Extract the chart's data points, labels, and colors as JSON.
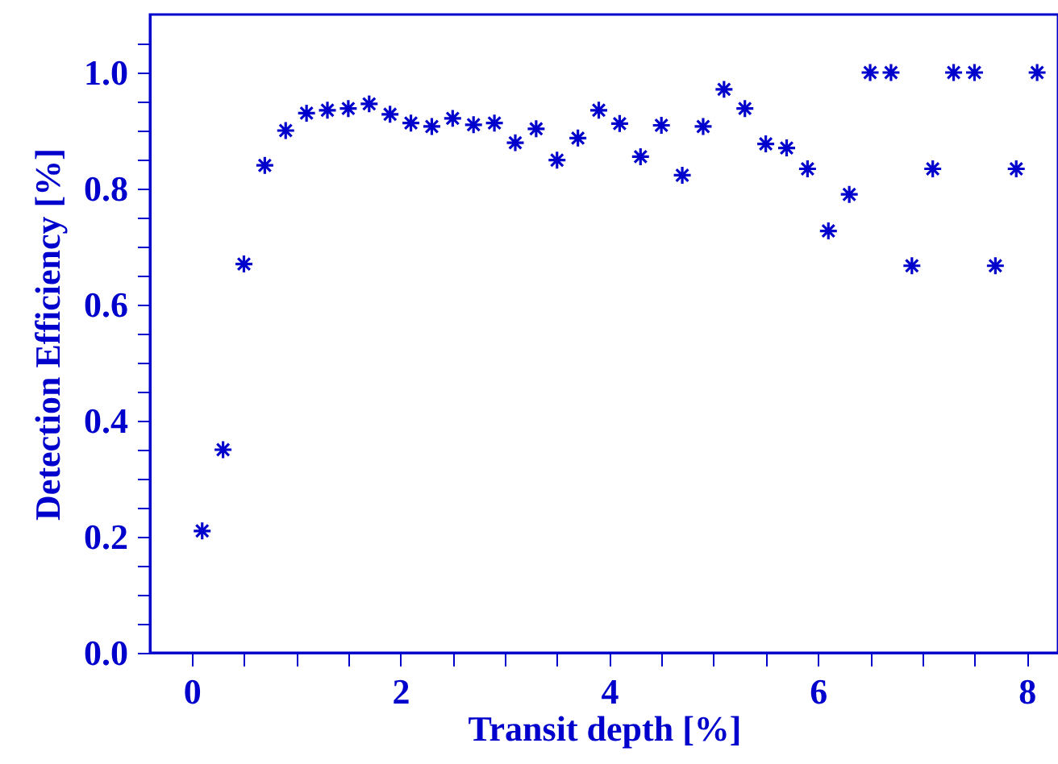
{
  "chart_data": {
    "type": "scatter",
    "xlabel": "Transit depth [%]",
    "ylabel": "Detection Efficiency [%]",
    "x": [
      0.1,
      0.3,
      0.5,
      0.7,
      0.9,
      1.1,
      1.3,
      1.5,
      1.7,
      1.9,
      2.1,
      2.3,
      2.5,
      2.7,
      2.9,
      3.1,
      3.3,
      3.5,
      3.7,
      3.9,
      4.1,
      4.3,
      4.5,
      4.7,
      4.9,
      5.1,
      5.3,
      5.5,
      5.7,
      5.9,
      6.1,
      6.3,
      6.5,
      6.7,
      6.9,
      7.1,
      7.3,
      7.5,
      7.7,
      7.9,
      8.1
    ],
    "series": [
      {
        "color": "#0000cc",
        "values": [
          0.21,
          0.35,
          0.67,
          0.84,
          0.9,
          0.93,
          0.935,
          0.938,
          0.946,
          0.928,
          0.913,
          0.907,
          0.921,
          0.91,
          0.913,
          0.879,
          0.903,
          0.849,
          0.887,
          0.935,
          0.912,
          0.855,
          0.909,
          0.823,
          0.907,
          0.971,
          0.938,
          0.877,
          0.87,
          0.834,
          0.727,
          0.79,
          1.0,
          1.0,
          0.667,
          0.834,
          1.0,
          1.0,
          0.667,
          0.834,
          1.0
        ]
      }
    ],
    "marker": "cross",
    "grid": false,
    "xlim": [
      -0.4,
      8.3
    ],
    "ylim": [
      0,
      1.1
    ],
    "xticks": [
      0,
      2,
      4,
      6,
      8,
      {
        "value": 0.5,
        "label": null
      },
      {
        "value": 1,
        "label": null
      },
      {
        "value": 1.5,
        "label": null
      },
      {
        "value": 2.5,
        "label": null
      },
      {
        "value": 3,
        "label": null
      },
      {
        "value": 3.5,
        "label": null
      },
      {
        "value": 4.5,
        "label": null
      },
      {
        "value": 5,
        "label": null
      },
      {
        "value": 5.5,
        "label": null
      },
      {
        "value": 6.5,
        "label": null
      },
      {
        "value": 7,
        "label": null
      },
      {
        "value": 7.5,
        "label": null
      }
    ],
    "yticks": [
      {
        "value": 0,
        "label": "0.0"
      },
      0.2,
      0.4,
      0.6,
      0.8,
      {
        "value": 1,
        "label": "1.0"
      },
      {
        "value": 0.05,
        "label": null
      },
      {
        "value": 0.1,
        "label": null
      },
      {
        "value": 0.15,
        "label": null
      },
      {
        "value": 0.25,
        "label": null
      },
      {
        "value": 0.3,
        "label": null
      },
      {
        "value": 0.35,
        "label": null
      },
      {
        "value": 0.45,
        "label": null
      },
      {
        "value": 0.5,
        "label": null
      },
      {
        "value": 0.55,
        "label": null
      },
      {
        "value": 0.65,
        "label": null
      },
      {
        "value": 0.7,
        "label": null
      },
      {
        "value": 0.75,
        "label": null
      },
      {
        "value": 0.85,
        "label": null
      },
      {
        "value": 0.9,
        "label": null
      },
      {
        "value": 0.95,
        "label": null
      },
      {
        "value": 1.05,
        "label": null
      }
    ]
  }
}
